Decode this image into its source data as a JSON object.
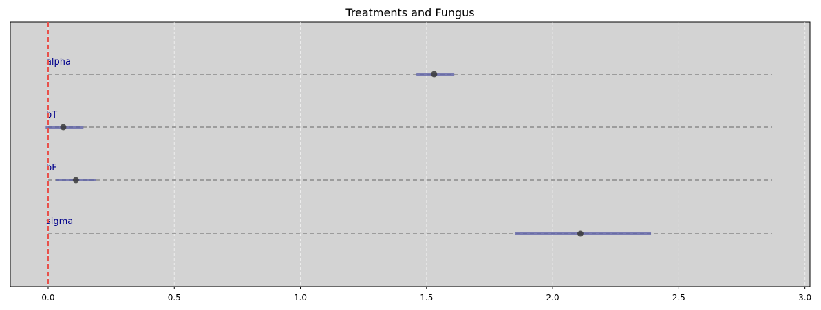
{
  "chart_data": {
    "type": "scatter",
    "title": "Treatments and Fungus",
    "xlabel": "",
    "ylabel": "",
    "xlim": [
      -0.15,
      3.02
    ],
    "x_ticks": [
      0.0,
      0.5,
      1.0,
      1.5,
      2.0,
      2.5,
      3.0
    ],
    "x_tick_labels": [
      "0.0",
      "0.5",
      "1.0",
      "1.5",
      "2.0",
      "2.5",
      "3.0"
    ],
    "grid": "vertical-dashed",
    "reference_line_x": 0.0,
    "row_line_range": [
      0.0,
      2.87
    ],
    "parameters": [
      {
        "label": "alpha",
        "mean": 1.53,
        "lower": 1.46,
        "upper": 1.61
      },
      {
        "label": "bT",
        "mean": 0.06,
        "lower": -0.01,
        "upper": 0.14
      },
      {
        "label": "bF",
        "mean": 0.11,
        "lower": 0.03,
        "upper": 0.19
      },
      {
        "label": "sigma",
        "mean": 2.11,
        "lower": 1.85,
        "upper": 2.39
      }
    ],
    "colors": {
      "background": "#d3d3d3",
      "interval": "#5b5ea6",
      "point": "#3a3a3a",
      "reference_line": "#e8504a",
      "row_line": "#8a8a8a",
      "label": "#00008b"
    }
  }
}
